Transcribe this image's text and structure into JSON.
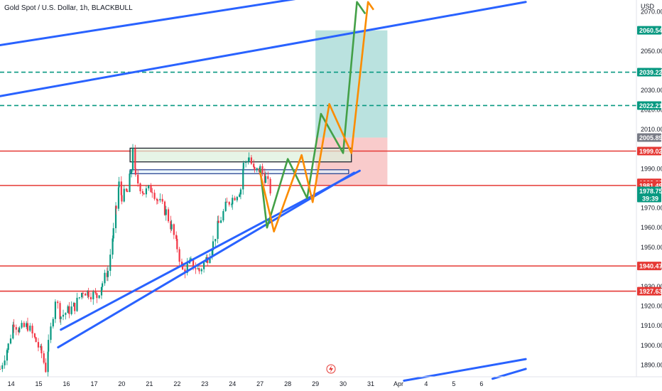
{
  "chart_data": {
    "type": "candlestick",
    "title": "Gold Spot / U.S. Dollar, 1h, BLACKBULL",
    "currency": "USD",
    "y_range": [
      1884,
      2076
    ],
    "x_range": [
      13.6,
      36.6
    ],
    "y_ticks": [
      "2070.00",
      "2060.00",
      "2050.00",
      "2040.00",
      "2030.00",
      "2020.00",
      "2010.00",
      "2000.00",
      "1990.00",
      "1980.00",
      "1970.00",
      "1960.00",
      "1950.00",
      "1940.00",
      "1930.00",
      "1920.00",
      "1910.00",
      "1900.00",
      "1890.00"
    ],
    "x_ticks": [
      {
        "label": "14",
        "x": 14
      },
      {
        "label": "15",
        "x": 15
      },
      {
        "label": "16",
        "x": 16
      },
      {
        "label": "17",
        "x": 17
      },
      {
        "label": "20",
        "x": 18
      },
      {
        "label": "21",
        "x": 19
      },
      {
        "label": "22",
        "x": 20
      },
      {
        "label": "23",
        "x": 21
      },
      {
        "label": "24",
        "x": 22
      },
      {
        "label": "27",
        "x": 23
      },
      {
        "label": "28",
        "x": 24
      },
      {
        "label": "29",
        "x": 25
      },
      {
        "label": "30",
        "x": 26
      },
      {
        "label": "31",
        "x": 27
      },
      {
        "label": "Apr",
        "x": 28
      },
      {
        "label": "4",
        "x": 29
      },
      {
        "label": "5",
        "x": 30
      },
      {
        "label": "6",
        "x": 31
      }
    ],
    "price_path": [
      [
        13.6,
        1888
      ],
      [
        13.9,
        1900
      ],
      [
        14.1,
        1912
      ],
      [
        14.3,
        1908
      ],
      [
        14.6,
        1910
      ],
      [
        14.9,
        1902
      ],
      [
        15.1,
        1896
      ],
      [
        15.25,
        1888
      ],
      [
        15.35,
        1900
      ],
      [
        15.6,
        1924
      ],
      [
        15.8,
        1915
      ],
      [
        16.1,
        1918
      ],
      [
        16.3,
        1920
      ],
      [
        16.6,
        1928
      ],
      [
        16.8,
        1927
      ],
      [
        17.1,
        1925
      ],
      [
        17.3,
        1932
      ],
      [
        17.5,
        1938
      ],
      [
        17.7,
        1958
      ],
      [
        17.8,
        1970
      ],
      [
        17.9,
        1982
      ],
      [
        18.0,
        1976
      ],
      [
        18.2,
        1978
      ],
      [
        18.35,
        1990
      ],
      [
        18.4,
        2002
      ],
      [
        18.5,
        1985
      ],
      [
        18.8,
        1978
      ],
      [
        19.1,
        1980
      ],
      [
        19.3,
        1974
      ],
      [
        19.6,
        1968
      ],
      [
        19.8,
        1960
      ],
      [
        20.0,
        1950
      ],
      [
        20.2,
        1938
      ],
      [
        20.5,
        1942
      ],
      [
        20.8,
        1938
      ],
      [
        21.1,
        1945
      ],
      [
        21.3,
        1952
      ],
      [
        21.5,
        1962
      ],
      [
        21.8,
        1972
      ],
      [
        22.0,
        1975
      ],
      [
        22.3,
        1980
      ],
      [
        22.4,
        1992
      ],
      [
        22.6,
        1996
      ],
      [
        22.8,
        1988
      ],
      [
        23.0,
        1990
      ],
      [
        23.2,
        1985
      ],
      [
        23.4,
        1978
      ]
    ],
    "horizontal_levels": [
      {
        "label": "1999.02",
        "value": 1999.02,
        "style": "solid",
        "color": "#e53935"
      },
      {
        "label": "1981.49",
        "value": 1981.49,
        "style": "solid",
        "color": "#e53935"
      },
      {
        "label": "1940.47",
        "value": 1940.47,
        "style": "solid",
        "color": "#e53935"
      },
      {
        "label": "1927.63",
        "value": 1927.63,
        "style": "solid",
        "color": "#e53935"
      },
      {
        "label": "2039.22",
        "value": 2039.22,
        "style": "dashed",
        "color": "#089981"
      },
      {
        "label": "2022.21",
        "value": 2022.21,
        "style": "dashed",
        "color": "#089981"
      }
    ],
    "price_badges": [
      {
        "label": "2060.54",
        "value": 2060.54,
        "color": "#089981"
      },
      {
        "label": "2039.22",
        "value": 2039.22,
        "color": "#089981"
      },
      {
        "label": "2022.21",
        "value": 2022.21,
        "color": "#089981"
      },
      {
        "label": "2005.89",
        "value": 2005.89,
        "color": "#787b86"
      },
      {
        "label": "1999.02",
        "value": 1999.02,
        "color": "#e53935"
      },
      {
        "label": "1982.83",
        "value": 1982.83,
        "color": "#e53935"
      },
      {
        "label": "1981.49",
        "value": 1981.49,
        "color": "#e53935"
      },
      {
        "label": "1978.75",
        "value": 1978.75,
        "color": "#089981",
        "extra": "39:39"
      },
      {
        "label": "1940.47",
        "value": 1940.47,
        "color": "#e53935"
      },
      {
        "label": "1927.63",
        "value": 1927.63,
        "color": "#e53935"
      }
    ],
    "position": {
      "entry": 2005.89,
      "target": 2060.54,
      "stop": 1981.49,
      "x_start": 25.0,
      "x_end": 27.6,
      "profit_color": "#b2dfdb",
      "loss_color": "#f8c5c5"
    },
    "zones": [
      {
        "x0": 18.3,
        "x1": 26.3,
        "y0": 1993.5,
        "y1": 2000.5,
        "color": "#dcf0dc"
      },
      {
        "x0": 18.3,
        "x1": 26.2,
        "y0": 1987.5,
        "y1": 1989.5,
        "color": "#e3f2fd"
      }
    ],
    "trendlines": [
      {
        "x0": 13.6,
        "y0": 2053,
        "x1": 25.4,
        "y1": 2079,
        "color": "#2962ff"
      },
      {
        "x0": 13.6,
        "y0": 2027,
        "x1": 32.6,
        "y1": 2075,
        "color": "#2962ff"
      },
      {
        "x0": 15.7,
        "y0": 1899,
        "x1": 26.4,
        "y1": 1988,
        "color": "#2962ff"
      },
      {
        "x0": 15.8,
        "y0": 1908,
        "x1": 26.6,
        "y1": 1989,
        "color": "#2962ff"
      },
      {
        "x0": 28.2,
        "y0": 1882,
        "x1": 32.6,
        "y1": 1893,
        "color": "#2962ff"
      },
      {
        "x0": 31.4,
        "y0": 1883,
        "x1": 32.6,
        "y1": 1888,
        "color": "#2962ff"
      }
    ],
    "projections": [
      {
        "name": "green path",
        "color": "#43a047",
        "points": [
          [
            23.0,
            1990
          ],
          [
            23.25,
            1960
          ],
          [
            24.0,
            1995
          ],
          [
            24.7,
            1975
          ],
          [
            25.2,
            2018
          ],
          [
            26.0,
            1998
          ],
          [
            26.5,
            2075
          ],
          [
            26.8,
            2069
          ]
        ]
      },
      {
        "name": "orange path",
        "color": "#fb8c00",
        "points": [
          [
            23.0,
            1988
          ],
          [
            23.5,
            1958
          ],
          [
            24.5,
            1997
          ],
          [
            24.9,
            1973
          ],
          [
            25.5,
            2023
          ],
          [
            26.3,
            1998
          ],
          [
            26.9,
            2075
          ],
          [
            27.1,
            2071
          ]
        ]
      }
    ]
  }
}
